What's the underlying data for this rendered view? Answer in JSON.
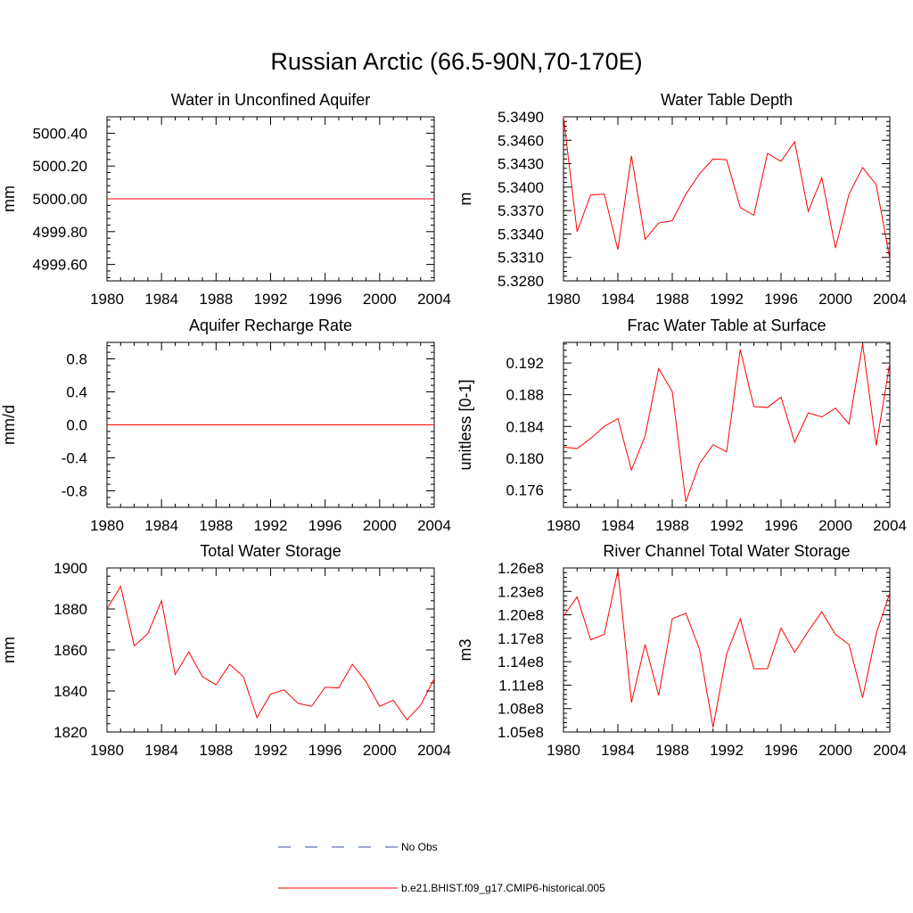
{
  "figure_title": "Russian Arctic (66.5-90N,70-170E)",
  "colors": {
    "model": "#ff0000",
    "obs": "#3a4fa0",
    "axis": "#000000"
  },
  "legend": {
    "obs_label": "No Obs",
    "model_label": "b.e21.BHIST.f09_g17.CMIP6-historical.005"
  },
  "chart_data": [
    {
      "type": "line",
      "title": "Water in Unconfined Aquifer",
      "xlabel": "",
      "ylabel": "mm",
      "xlim": [
        1980,
        2004
      ],
      "ylim": [
        4999.5,
        5000.5
      ],
      "yticks": [
        4999.6,
        4999.8,
        5000.0,
        5000.2,
        5000.4
      ],
      "ytick_labels": [
        "4999.60",
        "4999.80",
        "5000.00",
        "5000.20",
        "5000.40"
      ],
      "xticks": [
        1980,
        1984,
        1988,
        1992,
        1996,
        2000,
        2004
      ],
      "xtick_labels": [
        "1980",
        "1984",
        "1988",
        "1992",
        "1996",
        "2000",
        "2004"
      ],
      "series": [
        {
          "x": [
            1980,
            2004
          ],
          "values": [
            5000.0,
            5000.0
          ]
        }
      ]
    },
    {
      "type": "line",
      "title": "Water Table Depth",
      "xlabel": "",
      "ylabel": "m",
      "xlim": [
        1980,
        2004
      ],
      "ylim": [
        5.328,
        5.349
      ],
      "yticks": [
        5.328,
        5.331,
        5.334,
        5.337,
        5.34,
        5.343,
        5.346,
        5.349
      ],
      "ytick_labels": [
        "5.3280",
        "5.3310",
        "5.3340",
        "5.3370",
        "5.3400",
        "5.3430",
        "5.3460",
        "5.3490"
      ],
      "xticks": [
        1980,
        1984,
        1988,
        1992,
        1996,
        2000,
        2004
      ],
      "xtick_labels": [
        "1980",
        "1984",
        "1988",
        "1992",
        "1996",
        "2000",
        "2004"
      ],
      "series": [
        {
          "x": [
            1980,
            1981,
            1982,
            1983,
            1984,
            1985,
            1986,
            1987,
            1988,
            1989,
            1990,
            1991,
            1992,
            1993,
            1994,
            1995,
            1996,
            1997,
            1998,
            1999,
            2000,
            2001,
            2002,
            2003,
            2004
          ],
          "values": [
            5.349,
            5.3343,
            5.339,
            5.3391,
            5.332,
            5.344,
            5.3333,
            5.3354,
            5.3357,
            5.3391,
            5.3417,
            5.3436,
            5.3435,
            5.3374,
            5.3364,
            5.3443,
            5.3433,
            5.3458,
            5.3369,
            5.3412,
            5.3322,
            5.3391,
            5.3425,
            5.3403,
            5.3308
          ]
        }
      ]
    },
    {
      "type": "line",
      "title": "Aquifer Recharge Rate",
      "xlabel": "",
      "ylabel": "mm/d",
      "xlim": [
        1980,
        2004
      ],
      "ylim": [
        -1.0,
        1.0
      ],
      "yticks": [
        -0.8,
        -0.4,
        0.0,
        0.4,
        0.8
      ],
      "ytick_labels": [
        "-0.8",
        "-0.4",
        "0.0",
        "0.4",
        "0.8"
      ],
      "xticks": [
        1980,
        1984,
        1988,
        1992,
        1996,
        2000,
        2004
      ],
      "xtick_labels": [
        "1980",
        "1984",
        "1988",
        "1992",
        "1996",
        "2000",
        "2004"
      ],
      "series": [
        {
          "x": [
            1980,
            2004
          ],
          "values": [
            0.0,
            0.0
          ]
        }
      ]
    },
    {
      "type": "line",
      "title": "Frac Water Table at Surface",
      "xlabel": "",
      "ylabel": "unitless [0-1]",
      "xlim": [
        1980,
        2004
      ],
      "ylim": [
        0.1738,
        0.1946
      ],
      "yticks": [
        0.176,
        0.18,
        0.184,
        0.188,
        0.192
      ],
      "ytick_labels": [
        "0.176",
        "0.180",
        "0.184",
        "0.188",
        "0.192"
      ],
      "xticks": [
        1980,
        1984,
        1988,
        1992,
        1996,
        2000,
        2004
      ],
      "xtick_labels": [
        "1980",
        "1984",
        "1988",
        "1992",
        "1996",
        "2000",
        "2004"
      ],
      "series": [
        {
          "x": [
            1980,
            1981,
            1982,
            1983,
            1984,
            1985,
            1986,
            1987,
            1988,
            1989,
            1990,
            1991,
            1992,
            1993,
            1994,
            1995,
            1996,
            1997,
            1998,
            1999,
            2000,
            2001,
            2002,
            2003,
            2004
          ],
          "values": [
            0.1814,
            0.1812,
            0.1825,
            0.184,
            0.185,
            0.1785,
            0.1828,
            0.1913,
            0.1884,
            0.1745,
            0.1793,
            0.1817,
            0.1808,
            0.1937,
            0.1865,
            0.1864,
            0.1877,
            0.182,
            0.1857,
            0.1852,
            0.1863,
            0.1843,
            0.1944,
            0.1816,
            0.192
          ]
        }
      ]
    },
    {
      "type": "line",
      "title": "Total Water Storage",
      "xlabel": "",
      "ylabel": "mm",
      "xlim": [
        1980,
        2004
      ],
      "ylim": [
        1820,
        1900
      ],
      "yticks": [
        1820,
        1840,
        1860,
        1880,
        1900
      ],
      "ytick_labels": [
        "1820",
        "1840",
        "1860",
        "1880",
        "1900"
      ],
      "xticks": [
        1980,
        1984,
        1988,
        1992,
        1996,
        2000,
        2004
      ],
      "xtick_labels": [
        "1980",
        "1984",
        "1988",
        "1992",
        "1996",
        "2000",
        "2004"
      ],
      "series": [
        {
          "x": [
            1980,
            1981,
            1982,
            1983,
            1984,
            1985,
            1986,
            1987,
            1988,
            1989,
            1990,
            1991,
            1992,
            1993,
            1994,
            1995,
            1996,
            1997,
            1998,
            1999,
            2000,
            2001,
            2002,
            2003,
            2004
          ],
          "values": [
            1880,
            1891,
            1862,
            1868,
            1884,
            1848,
            1859,
            1847,
            1843,
            1853,
            1847,
            1827,
            1838.5,
            1840.5,
            1834,
            1832.5,
            1841.8,
            1841.5,
            1853,
            1844.5,
            1832.5,
            1835.5,
            1826,
            1833,
            1846
          ]
        }
      ]
    },
    {
      "type": "line",
      "title": "River Channel Total Water Storage",
      "xlabel": "",
      "ylabel": "m3",
      "xlim": [
        1980,
        2004
      ],
      "ylim": [
        105000000,
        126000000
      ],
      "yticks": [
        105000000,
        108000000,
        111000000,
        114000000,
        117000000,
        120000000,
        123000000,
        126000000
      ],
      "ytick_labels": [
        "1.05e8",
        "1.08e8",
        "1.11e8",
        "1.14e8",
        "1.17e8",
        "1.20e8",
        "1.23e8",
        "1.26e8"
      ],
      "xticks": [
        1980,
        1984,
        1988,
        1992,
        1996,
        2000,
        2004
      ],
      "xtick_labels": [
        "1980",
        "1984",
        "1988",
        "1992",
        "1996",
        "2000",
        "2004"
      ],
      "series": [
        {
          "x": [
            1980,
            1981,
            1982,
            1983,
            1984,
            1985,
            1986,
            1987,
            1988,
            1989,
            1990,
            1991,
            1992,
            1993,
            1994,
            1995,
            1996,
            1997,
            1998,
            1999,
            2000,
            2001,
            2002,
            2003,
            2004
          ],
          "values": [
            119800000,
            122300000,
            116800000,
            117500000,
            125700000,
            108800000,
            116200000,
            109700000,
            119500000,
            120200000,
            115600000,
            105600000,
            115000000,
            119500000,
            113100000,
            113100000,
            118300000,
            115200000,
            117900000,
            120400000,
            117500000,
            116200000,
            109400000,
            117600000,
            122800000
          ]
        }
      ]
    }
  ]
}
